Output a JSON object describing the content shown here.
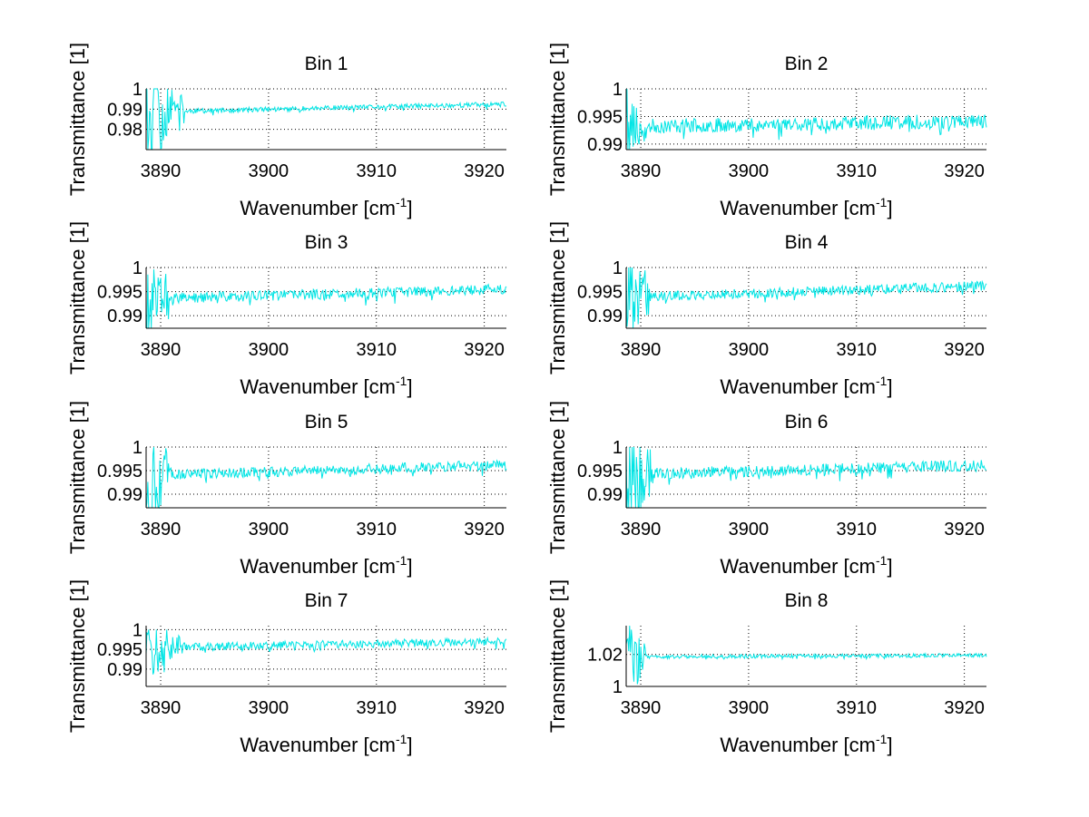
{
  "figure": {
    "background": "#ffffff",
    "line_color": "#00e5e5",
    "grid_style": "dotted"
  },
  "chart_data": [
    {
      "type": "line",
      "title": "Bin 1",
      "xlabel": "Wavenumber [cm",
      "xlabel_sup": "-1",
      "xlabel_close": "]",
      "ylabel": "Transmittance [1]",
      "xlim": [
        3888.65,
        3922.05
      ],
      "ylim": [
        0.97,
        1.0
      ],
      "xticks": [
        3890,
        3900,
        3910,
        3920
      ],
      "xtick_labels": [
        "3890",
        "3900",
        "3910",
        "3920"
      ],
      "yticks": [
        0.98,
        0.99,
        1.0
      ],
      "ytick_labels": [
        "0.98",
        "0.99",
        "1"
      ],
      "grid": true,
      "series": [
        {
          "name": "Bin 1",
          "seed": 11,
          "baseline_start": 0.9885,
          "baseline_end": 0.9925,
          "noise": 0.0012,
          "edge_noise": 0.02,
          "edge_until": 3892.2
        }
      ]
    },
    {
      "type": "line",
      "title": "Bin 2",
      "xlabel": "Wavenumber [cm",
      "xlabel_sup": "-1",
      "xlabel_close": "]",
      "ylabel": "Transmittance [1]",
      "xlim": [
        3888.65,
        3922.05
      ],
      "ylim": [
        0.989,
        1.0
      ],
      "xticks": [
        3890,
        3900,
        3910,
        3920
      ],
      "xtick_labels": [
        "3890",
        "3900",
        "3910",
        "3920"
      ],
      "yticks": [
        0.99,
        0.995,
        1.0
      ],
      "ytick_labels": [
        "0.99",
        "0.995",
        "1"
      ],
      "grid": true,
      "series": [
        {
          "name": "Bin 2",
          "seed": 23,
          "baseline_start": 0.9932,
          "baseline_end": 0.9942,
          "noise": 0.0013,
          "edge_noise": 0.008,
          "edge_until": 3889.9
        }
      ]
    },
    {
      "type": "line",
      "title": "Bin 3",
      "xlabel": "Wavenumber [cm",
      "xlabel_sup": "-1",
      "xlabel_close": "]",
      "ylabel": "Transmittance [1]",
      "xlim": [
        3888.65,
        3922.05
      ],
      "ylim": [
        0.9874,
        1.0
      ],
      "xticks": [
        3890,
        3900,
        3910,
        3920
      ],
      "xtick_labels": [
        "3890",
        "3900",
        "3910",
        "3920"
      ],
      "yticks": [
        0.99,
        0.995,
        1.0
      ],
      "ytick_labels": [
        "0.99",
        "0.995",
        "1"
      ],
      "grid": true,
      "series": [
        {
          "name": "Bin 3",
          "seed": 37,
          "baseline_start": 0.9935,
          "baseline_end": 0.9955,
          "noise": 0.0011,
          "edge_noise": 0.009,
          "edge_until": 3890.8
        }
      ]
    },
    {
      "type": "line",
      "title": "Bin 4",
      "xlabel": "Wavenumber [cm",
      "xlabel_sup": "-1",
      "xlabel_close": "]",
      "ylabel": "Transmittance [1]",
      "xlim": [
        3888.65,
        3922.05
      ],
      "ylim": [
        0.9874,
        1.0
      ],
      "xticks": [
        3890,
        3900,
        3910,
        3920
      ],
      "xtick_labels": [
        "3890",
        "3900",
        "3910",
        "3920"
      ],
      "yticks": [
        0.99,
        0.995,
        1.0
      ],
      "ytick_labels": [
        "0.99",
        "0.995",
        "1"
      ],
      "grid": true,
      "series": [
        {
          "name": "Bin 4",
          "seed": 41,
          "baseline_start": 0.9938,
          "baseline_end": 0.9962,
          "noise": 0.001,
          "edge_noise": 0.009,
          "edge_until": 3890.8
        }
      ]
    },
    {
      "type": "line",
      "title": "Bin 5",
      "xlabel": "Wavenumber [cm",
      "xlabel_sup": "-1",
      "xlabel_close": "]",
      "ylabel": "Transmittance [1]",
      "xlim": [
        3888.65,
        3922.05
      ],
      "ylim": [
        0.9871,
        1.0
      ],
      "xticks": [
        3890,
        3900,
        3910,
        3920
      ],
      "xtick_labels": [
        "3890",
        "3900",
        "3910",
        "3920"
      ],
      "yticks": [
        0.99,
        0.995,
        1.0
      ],
      "ytick_labels": [
        "0.99",
        "0.995",
        "1"
      ],
      "grid": true,
      "series": [
        {
          "name": "Bin 5",
          "seed": 53,
          "baseline_start": 0.994,
          "baseline_end": 0.9962,
          "noise": 0.0011,
          "edge_noise": 0.009,
          "edge_until": 3891.0
        }
      ]
    },
    {
      "type": "line",
      "title": "Bin 6",
      "xlabel": "Wavenumber [cm",
      "xlabel_sup": "-1",
      "xlabel_close": "]",
      "ylabel": "Transmittance [1]",
      "xlim": [
        3888.65,
        3922.05
      ],
      "ylim": [
        0.9871,
        1.0
      ],
      "xticks": [
        3890,
        3900,
        3910,
        3920
      ],
      "xtick_labels": [
        "3890",
        "3900",
        "3910",
        "3920"
      ],
      "yticks": [
        0.99,
        0.995,
        1.0
      ],
      "ytick_labels": [
        "0.99",
        "0.995",
        "1"
      ],
      "grid": true,
      "series": [
        {
          "name": "Bin 6",
          "seed": 67,
          "baseline_start": 0.9942,
          "baseline_end": 0.9962,
          "noise": 0.0012,
          "edge_noise": 0.01,
          "edge_until": 3891.2
        }
      ]
    },
    {
      "type": "line",
      "title": "Bin 7",
      "xlabel": "Wavenumber [cm",
      "xlabel_sup": "-1",
      "xlabel_close": "]",
      "ylabel": "Transmittance [1]",
      "xlim": [
        3888.65,
        3922.05
      ],
      "ylim": [
        0.9856,
        1.001
      ],
      "xticks": [
        3890,
        3900,
        3910,
        3920
      ],
      "xtick_labels": [
        "3890",
        "3900",
        "3910",
        "3920"
      ],
      "yticks": [
        0.99,
        0.995,
        1.0
      ],
      "ytick_labels": [
        "0.99",
        "0.995",
        "1"
      ],
      "grid": true,
      "series": [
        {
          "name": "Bin 7",
          "seed": 71,
          "baseline_start": 0.9955,
          "baseline_end": 0.997,
          "noise": 0.001,
          "edge_noise": 0.007,
          "edge_until": 3891.8,
          "clip_max": 1.0
        }
      ]
    },
    {
      "type": "line",
      "title": "Bin 8",
      "xlabel": "Wavenumber [cm",
      "xlabel_sup": "-1",
      "xlabel_close": "]",
      "ylabel": "Transmittance [1]",
      "xlim": [
        3888.65,
        3922.05
      ],
      "ylim": [
        1.0,
        1.038
      ],
      "xticks": [
        3890,
        3900,
        3910,
        3920
      ],
      "xtick_labels": [
        "3890",
        "3900",
        "3910",
        "3920"
      ],
      "yticks": [
        1.0,
        1.02
      ],
      "ytick_labels": [
        "1",
        "1.02"
      ],
      "grid": true,
      "series": [
        {
          "name": "Bin 8",
          "seed": 83,
          "baseline_start": 1.0185,
          "baseline_end": 1.0195,
          "noise": 0.0012,
          "edge_noise": 0.02,
          "edge_until": 3890.6,
          "clip_min": 1.0
        }
      ]
    }
  ]
}
